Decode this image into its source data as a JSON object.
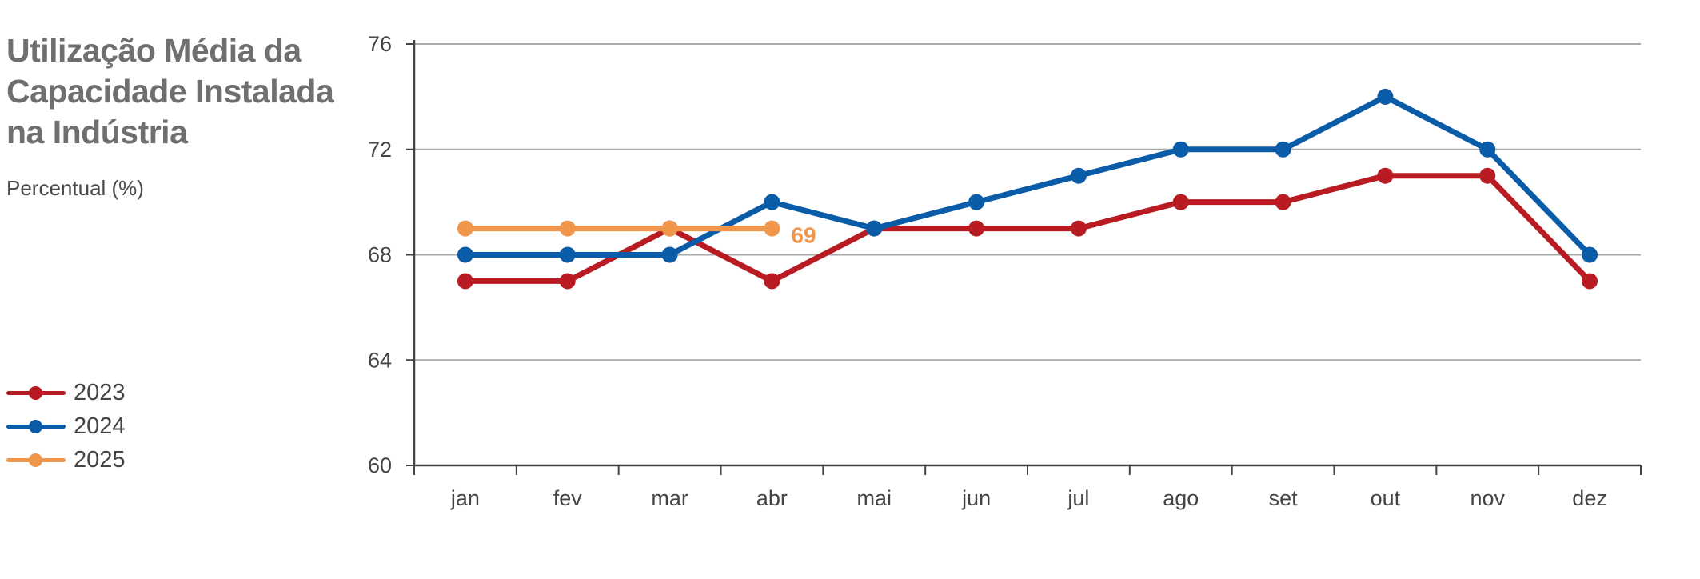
{
  "chart_data": {
    "type": "line",
    "title": "Utilização Média da Capacidade Instalada na Indústria",
    "subtitle": "Percentual (%)",
    "categories": [
      "jan",
      "fev",
      "mar",
      "abr",
      "mai",
      "jun",
      "jul",
      "ago",
      "set",
      "out",
      "nov",
      "dez"
    ],
    "series": [
      {
        "name": "2023",
        "color": "#b81c22",
        "values": [
          67,
          67,
          69,
          67,
          69,
          69,
          69,
          70,
          70,
          71,
          71,
          67
        ]
      },
      {
        "name": "2024",
        "color": "#0b5ca8",
        "values": [
          68,
          68,
          68,
          70,
          69,
          70,
          71,
          72,
          72,
          74,
          72,
          68
        ]
      },
      {
        "name": "2025",
        "color": "#f0954a",
        "values": [
          69,
          69,
          69,
          69,
          null,
          null,
          null,
          null,
          null,
          null,
          null,
          null
        ]
      }
    ],
    "yticks": [
      60,
      64,
      68,
      72,
      76
    ],
    "ylim": [
      60,
      76
    ],
    "grid": true,
    "legend_position": "left",
    "annotations": [
      {
        "series": "2025",
        "category": "abr",
        "text": "69",
        "color": "#f0954a"
      }
    ]
  }
}
